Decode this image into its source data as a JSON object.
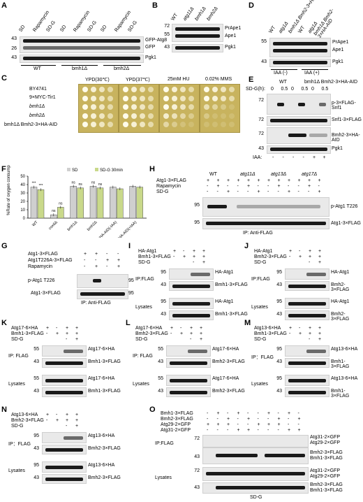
{
  "panels": {
    "A": {
      "label": "A",
      "lanes": [
        "SD",
        "Rapamycin",
        "SD-G",
        "SD",
        "Rapamycin",
        "SD-G",
        "SD",
        "Rapamycin",
        "SD-G"
      ],
      "mw": [
        "43",
        "26",
        "43"
      ],
      "bands": [
        "GFP-Atg8",
        "GFP",
        "Pgk1"
      ],
      "groups": [
        "WT",
        "bmh1Δ",
        "bmh2Δ"
      ]
    },
    "B": {
      "label": "B",
      "lanes": [
        "WT",
        "atg11Δ",
        "bmh1Δ",
        "bmh2Δ"
      ],
      "mw": [
        "72",
        "55",
        "43"
      ],
      "bands": [
        "PrApe1",
        "Ape1",
        "Pgk1"
      ]
    },
    "C": {
      "label": "C",
      "conditions": [
        "YPD(30℃)",
        "YPD(37℃)",
        "25mM HU",
        "0.02% MMS"
      ],
      "strains": [
        "BY4741",
        "9×MYC-Tir1",
        "bmh1Δ",
        "bmh2Δ",
        "bmh1Δ Bmh2-3×HA-AID"
      ]
    },
    "D": {
      "label": "D",
      "lanes": [
        "WT",
        "atg1Δ",
        "bmh1Δ Bmh2-3×HA-AID",
        "WT",
        "atg1Δ",
        "bmh1Δ Bmh2-3×HA-AID"
      ],
      "mw": [
        "55",
        "43"
      ],
      "bands": [
        "PrApe1",
        "Ape1",
        "Pgk1"
      ],
      "groups": [
        "IAA (-)",
        "IAA (+)"
      ]
    },
    "E": {
      "label": "E",
      "header_left": "WT",
      "header_right": "bmh1Δ Bmh2-3×HA-AID",
      "time_label": "SD-G(h):",
      "times": [
        "0",
        "0.5",
        "0",
        "0.5",
        "0",
        "0.5"
      ],
      "mw": [
        "72",
        "72",
        "72",
        "43"
      ],
      "bands": [
        "p-3×FLAG-Snf1",
        "Snf1-3×FLAG",
        "Bmh2-3×HA-AID",
        "Pgk1"
      ],
      "iaa_label": "IAA:",
      "iaa": [
        "-",
        "-",
        "-",
        "-",
        "+",
        "+"
      ]
    },
    "F": {
      "label": "F",
      "legend": [
        "SD",
        "SD-G 30min"
      ],
      "ylabel": "%Rate of oxygen consumption",
      "yticks": [
        "0",
        "10",
        "20",
        "30",
        "40",
        "50"
      ],
      "categories": [
        "WT",
        "cox6Δ",
        "bmh1Δ",
        "bmh2Δ",
        "bmh1Δ, Bmh2-3×HA-AID(-IAA)",
        "bmh1Δ, Bmh2-3×HA-AID(+IAA)"
      ],
      "sig": [
        "***",
        "***",
        "ns",
        "ns",
        "ns",
        "ns",
        "ns",
        "ns"
      ]
    },
    "G": {
      "label": "G",
      "rows": [
        "Atg1-3×FLAG",
        "Atg1T226A-3×FLAG",
        "Rapamycin"
      ],
      "marks": [
        [
          "+",
          "+",
          "-",
          "-"
        ],
        [
          "-",
          "-",
          "+",
          "+"
        ],
        [
          "-",
          "+",
          "-",
          "+"
        ]
      ],
      "mw": [
        "95",
        "95"
      ],
      "bands": [
        "p-Atg1 T226",
        "Atg1-3×FLAG"
      ],
      "footer": "IP: Anti-FLAG"
    },
    "H": {
      "label": "H",
      "groups": [
        "WT",
        "atg11Δ",
        "atg13Δ",
        "atg17Δ"
      ],
      "rows": [
        "Atg1-3×FLAG",
        "Rapamycin",
        "SD-G"
      ],
      "marks": [
        [
          "+",
          "+",
          "+",
          "+",
          "+",
          "+",
          "+",
          "+",
          "+",
          "+",
          "+",
          "+"
        ],
        [
          "-",
          "+",
          "-",
          "-",
          "+",
          "-",
          "-",
          "+",
          "-",
          "-",
          "+",
          "-"
        ],
        [
          "-",
          "-",
          "+",
          "-",
          "-",
          "+",
          "-",
          "-",
          "+",
          "-",
          "-",
          "+"
        ]
      ],
      "mw": [
        "95",
        "95"
      ],
      "bands": [
        "p-Atg1 T226",
        "Atg1-3×FLAG"
      ],
      "footer": "IP: Anti-FLAG"
    },
    "I": {
      "label": "I",
      "rows": [
        "HA-Atg1",
        "Bmh1-3×FLAG",
        "SD-G"
      ],
      "marks": [
        [
          "+",
          "-",
          "+",
          "+"
        ],
        [
          "-",
          "+",
          "+",
          "+"
        ],
        [
          "",
          "",
          "-",
          "+"
        ]
      ],
      "sections": [
        "IP:FLAG",
        "Lysates"
      ],
      "mw": [
        "95",
        "43",
        "95",
        "43"
      ],
      "bands": [
        "HA-Atg1",
        "Bmh1-3×FLAG",
        "HA-Atg1",
        "Bmh1-3×FLAG"
      ]
    },
    "J": {
      "label": "J",
      "rows": [
        "HA-Atg1",
        "Bmh2-3×FLAG",
        "SD-G"
      ],
      "marks": [
        [
          "+",
          "-",
          "+",
          "+"
        ],
        [
          "-",
          "+",
          "+",
          "+"
        ],
        [
          "",
          "",
          "-",
          "+"
        ]
      ],
      "sections": [
        "IP:FLAG",
        "Lysates"
      ],
      "mw": [
        "95",
        "43",
        "95",
        "43"
      ],
      "bands": [
        "HA-Atg1",
        "Bmh2-3×FLAG",
        "HA-Atg1",
        "Bmh2-3×FLAG"
      ]
    },
    "K": {
      "label": "K",
      "rows": [
        "Atg17-6×HA",
        "Bmh1-3×FLAG",
        "SD-G"
      ],
      "marks": [
        [
          "+",
          "-",
          "+",
          "+"
        ],
        [
          "-",
          "+",
          "+",
          "+"
        ],
        [
          "",
          "",
          "-",
          "+"
        ]
      ],
      "sections": [
        "IP: FLAG",
        "Lysates"
      ],
      "mw": [
        "55",
        "43",
        "55",
        "43"
      ],
      "bands": [
        "Atg17-6×HA",
        "Bmh1-3×FLAG",
        "Atg17-6×HA",
        "Bmh1-3×FLAG"
      ]
    },
    "L": {
      "label": "L",
      "rows": [
        "Atg17-6×HA",
        "Bmh2-3×FLAG",
        "SD-G"
      ],
      "marks": [
        [
          "+",
          "-",
          "+",
          "+"
        ],
        [
          "-",
          "+",
          "+",
          "+"
        ],
        [
          "",
          "",
          "-",
          "+"
        ]
      ],
      "sections": [
        "IP: FLAG",
        "Lysates"
      ],
      "mw": [
        "55",
        "43",
        "55",
        "43"
      ],
      "bands": [
        "Atg17-6×HA",
        "Bmh2-3×FLAG",
        "Atg17-6×HA",
        "Bmh2-3×FLAG"
      ]
    },
    "M": {
      "label": "M",
      "rows": [
        "Atg13-6×HA",
        "Bmh1-3×FLAG",
        "SD-G"
      ],
      "marks": [
        [
          "+",
          "-",
          "+",
          "+"
        ],
        [
          "-",
          "+",
          "+",
          "+"
        ],
        [
          "",
          "",
          "-",
          "+"
        ]
      ],
      "sections": [
        "IP：FLAG",
        "Lysates"
      ],
      "mw": [
        "95",
        "43",
        "95",
        "43"
      ],
      "bands": [
        "Atg13-6×HA",
        "Bmh1-3×FLAG",
        "Atg13-6×HA",
        "Bmh1-3×FLAG"
      ]
    },
    "N": {
      "label": "N",
      "rows": [
        "Atg13-6×HA",
        "Bmh2-3×FLAG",
        "SD-G"
      ],
      "marks": [
        [
          "+",
          "-",
          "+",
          "+"
        ],
        [
          "-",
          "+",
          "+",
          "+"
        ],
        [
          "",
          "",
          "-",
          "+"
        ]
      ],
      "sections": [
        "IP：FLAG",
        "Lysates"
      ],
      "mw": [
        "95",
        "43",
        "95",
        "43"
      ],
      "bands": [
        "Atg13-6×HA",
        "Bmh2-3×FLAG",
        "Atg13-6×HA",
        "Bmh2-3×FLAG"
      ]
    },
    "O": {
      "label": "O",
      "rows": [
        "Bmh1-3×FLAG",
        "Bmh2-3×FLAG",
        "Atg29-2×GFP",
        "Atg31-2×GFP"
      ],
      "marks": [
        [
          "-",
          "+",
          "-",
          "+",
          "-",
          "-",
          "+",
          "-",
          "+",
          "-"
        ],
        [
          "-",
          "-",
          "+",
          "-",
          "+",
          "-",
          "-",
          "+",
          "-",
          "+"
        ],
        [
          "+",
          "+",
          "+",
          "-",
          "-",
          "+",
          "+",
          "+",
          "-",
          "-"
        ],
        [
          "-",
          "-",
          "-",
          "+",
          "+",
          "-",
          "-",
          "-",
          "+",
          "+"
        ]
      ],
      "sections": [
        "IP:FLAG",
        "Lysates"
      ],
      "mw": [
        "72",
        "43",
        "72",
        "43"
      ],
      "bands_top": [
        "Atg31-2×GFP",
        "Atg29-2×GFP"
      ],
      "bands_flag": [
        "Bmh2-3×FLAG",
        "Bmh1-3×FLAG"
      ],
      "bands_lys_top": [
        "Atg31-2×GFP",
        "Atg29-2×GFP"
      ],
      "bands_lys_flag": [
        "Bmh2-3×FLAG",
        "Bmh1-3×FLAG"
      ],
      "footer": "SD-G"
    }
  },
  "chart_data": {
    "type": "bar",
    "categories": [
      "WT",
      "cox6Δ",
      "bmh1Δ",
      "bmh2Δ",
      "bmh1Δ, Bmh2-3×HA-AID(-IAA)",
      "bmh1Δ, Bmh2-3×HA-AID(+IAA)"
    ],
    "series": [
      {
        "name": "SD",
        "values": [
          37,
          4,
          38,
          38,
          37,
          38
        ],
        "color": "#cfcfcf"
      },
      {
        "name": "SD-G 30min",
        "values": [
          34,
          13,
          36,
          36,
          35,
          37
        ],
        "color": "#c9d98a"
      }
    ],
    "ylabel": "%Rate of oxygen consumption",
    "ylim": [
      0,
      50
    ],
    "legend": "top"
  }
}
